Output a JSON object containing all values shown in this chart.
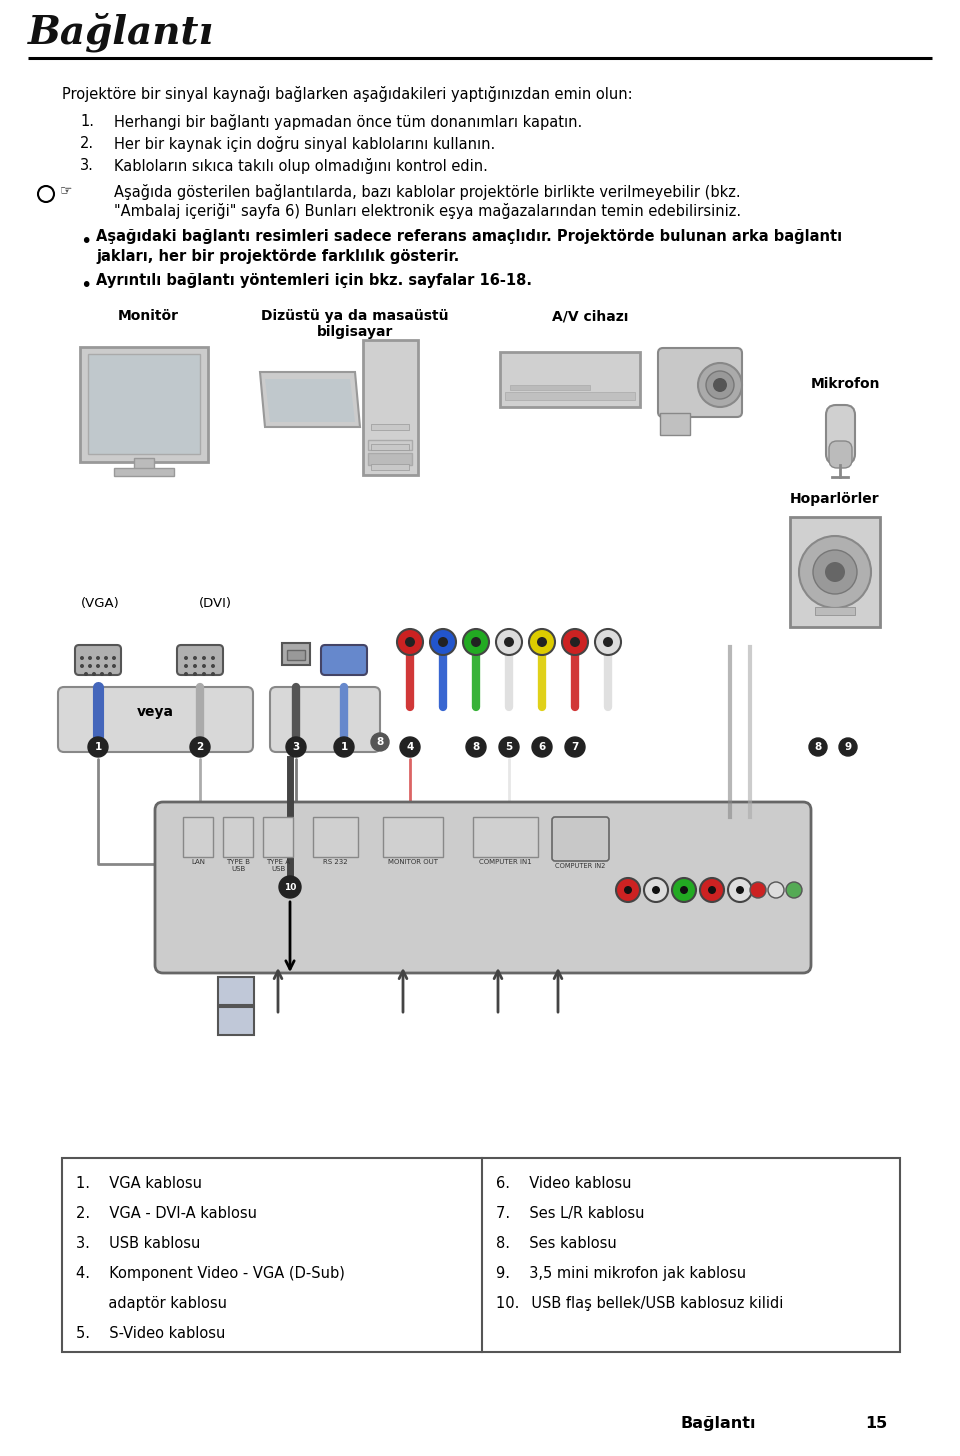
{
  "title": "Bağlantı",
  "page_number": "15",
  "page_label": "Bağlantı",
  "bg_color": "#ffffff",
  "text_color": "#000000",
  "intro_text": "Projektöre bir sinyal kaynağı bağlarken aşağıdakileri yaptığınızdan emin olun:",
  "num1": "Herhangi bir bağlantı yapmadan önce tüm donanımları kapatın.",
  "num2": "Her bir kaynak için doğru sinyal kablolarını kullanın.",
  "num3": "Kabloların sıkıca takılı olup olmadığını kontrol edin.",
  "note1": "Aşağıda gösterilen bağlantılarda, bazı kablolar projektörle birlikte verilmeyebilir (bkz.",
  "note2": "\"Ambalaj içeriği\" sayfa 6) Bunları elektronik eşya mağazalarından temin edebilirsiniz.",
  "bullet1a": "Aşağıdaki bağlantı resimleri sadece referans amaçlıdır. Projektörde bulunan arka bağlantı",
  "bullet1b": "jakları, her bir projektörde farklılık gösterir.",
  "bullet2": "Ayrıntılı bağlantı yöntemleri için bkz. sayfalar 16-18.",
  "label_monitor": "Monitör",
  "label_laptop": "Dizüstü ya da masaüstü\nbilgisayar",
  "label_av": "A/V cihazı",
  "label_mic": "Mikrofon",
  "label_speakers": "Hoparlörler",
  "label_vga": "(VGA)",
  "label_dvi": "(DVI)",
  "label_veya": "veya",
  "tl1": "1.  VGA kablosu",
  "tl2": "2.  VGA - DVI-A kablosu",
  "tl3": "3.  USB kablosu",
  "tl4": "4.  Komponent Video - VGA (D-Sub)",
  "tl4b": "       adaptör kablosu",
  "tl5": "5.  S-Video kablosu",
  "tr6": "6.  Video kablosu",
  "tr7": "7.  Ses L/R kablosu",
  "tr8": "8.  Ses kablosu",
  "tr9": "9.  3,5 mini mikrofon jak kablosu",
  "tr10": "10.  USB flaş bellek/USB kablosuz kilidi",
  "gray_device": "#d8d8d8",
  "dark_gray": "#888888",
  "mid_gray": "#aaaaaa",
  "light_gray": "#e8e8e8",
  "cable_dark": "#333333",
  "cable_gray": "#999999",
  "col_red": "#cc2222",
  "col_blue": "#2255cc",
  "col_green": "#22aa22",
  "col_yellow": "#ddcc00",
  "col_white_rca": "#dddddd",
  "col_black_cable": "#222222"
}
